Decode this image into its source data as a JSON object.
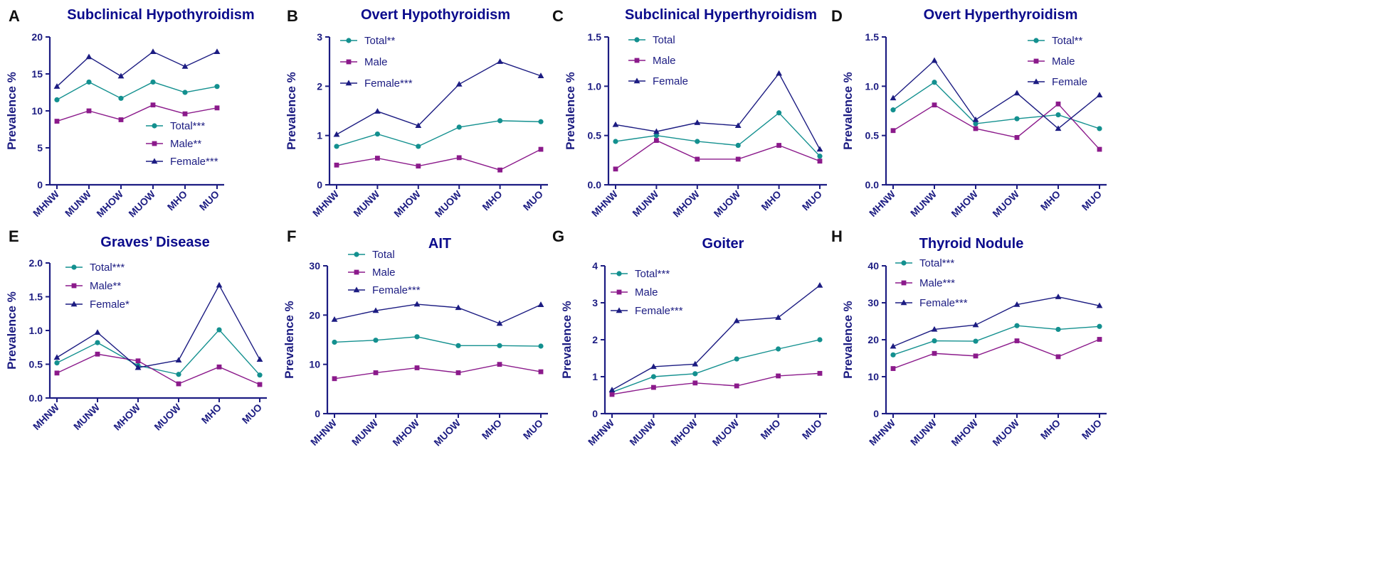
{
  "colors": {
    "total": "#13908F",
    "male": "#8B1A8B",
    "female": "#1C1C82",
    "axis": "#1C1C82",
    "text": "#1C1C82",
    "title": "#0B0B8C"
  },
  "chart_data": [
    {
      "panel_letter": "A",
      "type": "line",
      "title": "Subclinical Hypothyroidism",
      "ylabel": "Prevalence %",
      "categories": [
        "MHNW",
        "MUNW",
        "MHOW",
        "MUOW",
        "MHO",
        "MUO"
      ],
      "ylim": [
        0,
        20
      ],
      "yticks": [
        "0",
        "5",
        "10",
        "15",
        "20"
      ],
      "legend_position": "bottom-right",
      "series": [
        {
          "name": "Total***",
          "key": "total",
          "values": [
            11.5,
            13.9,
            11.7,
            13.9,
            12.5,
            13.3
          ]
        },
        {
          "name": "Male**",
          "key": "male",
          "values": [
            8.6,
            10.0,
            8.8,
            10.8,
            9.6,
            10.4
          ]
        },
        {
          "name": "Female***",
          "key": "female",
          "values": [
            13.3,
            17.3,
            14.7,
            18.0,
            16.0,
            18.0
          ]
        }
      ]
    },
    {
      "panel_letter": "B",
      "type": "line",
      "title": "Overt Hypothyroidism",
      "ylabel": "Prevalence %",
      "categories": [
        "MHNW",
        "MUNW",
        "MHOW",
        "MUOW",
        "MHO",
        "MUO"
      ],
      "ylim": [
        0,
        3
      ],
      "yticks": [
        "0",
        "1",
        "2",
        "3"
      ],
      "legend_position": "top-left",
      "series": [
        {
          "name": "Total**",
          "key": "total",
          "values": [
            0.78,
            1.03,
            0.78,
            1.17,
            1.3,
            1.28
          ]
        },
        {
          "name": "Male",
          "key": "male",
          "values": [
            0.4,
            0.54,
            0.38,
            0.55,
            0.3,
            0.72
          ]
        },
        {
          "name": "Female***",
          "key": "female",
          "values": [
            1.02,
            1.49,
            1.2,
            2.04,
            2.5,
            2.21
          ]
        }
      ]
    },
    {
      "panel_letter": "C",
      "type": "line",
      "title": "Subclinical Hyperthyroidism",
      "ylabel": "Prevalence %",
      "categories": [
        "MHNW",
        "MUNW",
        "MHOW",
        "MUOW",
        "MHO",
        "MUO"
      ],
      "ylim": [
        0,
        1.5
      ],
      "yticks": [
        "0.0",
        "0.5",
        "1.0",
        "1.5"
      ],
      "legend_position": "top-left",
      "series": [
        {
          "name": "Total",
          "key": "total",
          "values": [
            0.44,
            0.5,
            0.44,
            0.4,
            0.73,
            0.29
          ]
        },
        {
          "name": "Male",
          "key": "male",
          "values": [
            0.16,
            0.45,
            0.26,
            0.26,
            0.4,
            0.24
          ]
        },
        {
          "name": "Female",
          "key": "female",
          "values": [
            0.61,
            0.54,
            0.63,
            0.6,
            1.13,
            0.36
          ]
        }
      ]
    },
    {
      "panel_letter": "D",
      "type": "line",
      "title": "Overt Hyperthyroidism",
      "ylabel": "Prevalence %",
      "categories": [
        "MHNW",
        "MUNW",
        "MHOW",
        "MUOW",
        "MHO",
        "MUO"
      ],
      "ylim": [
        0,
        1.5
      ],
      "yticks": [
        "0.0",
        "0.5",
        "1.0",
        "1.5"
      ],
      "legend_position": "top-right",
      "series": [
        {
          "name": "Total**",
          "key": "total",
          "values": [
            0.76,
            1.04,
            0.62,
            0.67,
            0.71,
            0.57
          ]
        },
        {
          "name": "Male",
          "key": "male",
          "values": [
            0.55,
            0.81,
            0.57,
            0.48,
            0.82,
            0.36
          ]
        },
        {
          "name": "Female",
          "key": "female",
          "values": [
            0.88,
            1.26,
            0.66,
            0.93,
            0.57,
            0.91
          ]
        }
      ]
    },
    {
      "panel_letter": "E",
      "type": "line",
      "title": "Graves’ Disease",
      "ylabel": "Prevalence %",
      "categories": [
        "MHNW",
        "MUNW",
        "MHOW",
        "MUOW",
        "MHO",
        "MUO"
      ],
      "ylim": [
        0,
        2.0
      ],
      "yticks": [
        "0.0",
        "0.5",
        "1.0",
        "1.5",
        "2.0"
      ],
      "legend_position": "top-left",
      "series": [
        {
          "name": "Total***",
          "key": "total",
          "values": [
            0.52,
            0.82,
            0.48,
            0.35,
            1.01,
            0.34
          ]
        },
        {
          "name": "Male**",
          "key": "male",
          "values": [
            0.37,
            0.65,
            0.55,
            0.21,
            0.46,
            0.2
          ]
        },
        {
          "name": "Female*",
          "key": "female",
          "values": [
            0.6,
            0.97,
            0.45,
            0.56,
            1.67,
            0.57
          ]
        }
      ]
    },
    {
      "panel_letter": "F",
      "type": "line",
      "title": "AIT",
      "ylabel": "Prevalence %",
      "categories": [
        "MHNW",
        "MUNW",
        "MHOW",
        "MUOW",
        "MHO",
        "MUO"
      ],
      "ylim": [
        0,
        30
      ],
      "yticks": [
        "0",
        "10",
        "20",
        "30"
      ],
      "legend_position": "top-left",
      "series": [
        {
          "name": "Total",
          "key": "total",
          "values": [
            14.5,
            14.9,
            15.6,
            13.8,
            13.8,
            13.7
          ]
        },
        {
          "name": "Male",
          "key": "male",
          "values": [
            7.1,
            8.3,
            9.3,
            8.3,
            10.0,
            8.5
          ]
        },
        {
          "name": "Female***",
          "key": "female",
          "values": [
            19.1,
            20.9,
            22.2,
            21.5,
            18.3,
            22.1
          ]
        }
      ]
    },
    {
      "panel_letter": "G",
      "type": "line",
      "title": "Goiter",
      "ylabel": "Prevalence %",
      "categories": [
        "MHNW",
        "MUNW",
        "MHOW",
        "MUOW",
        "MHO",
        "MUO"
      ],
      "ylim": [
        0,
        4
      ],
      "yticks": [
        "0",
        "1",
        "2",
        "3",
        "4"
      ],
      "legend_position": "top-left",
      "series": [
        {
          "name": "Total***",
          "key": "total",
          "values": [
            0.58,
            1.0,
            1.08,
            1.48,
            1.75,
            2.0
          ]
        },
        {
          "name": "Male",
          "key": "male",
          "values": [
            0.52,
            0.71,
            0.83,
            0.75,
            1.02,
            1.09
          ]
        },
        {
          "name": "Female***",
          "key": "female",
          "values": [
            0.64,
            1.27,
            1.34,
            2.51,
            2.6,
            3.47
          ]
        }
      ]
    },
    {
      "panel_letter": "H",
      "type": "line",
      "title": "Thyroid Nodule",
      "ylabel": "Prevalence %",
      "categories": [
        "MHNW",
        "MUNW",
        "MHOW",
        "MUOW",
        "MHO",
        "MUO"
      ],
      "ylim": [
        0,
        40
      ],
      "yticks": [
        "0",
        "10",
        "20",
        "30",
        "40"
      ],
      "legend_position": "top-left",
      "series": [
        {
          "name": "Total***",
          "key": "total",
          "values": [
            15.9,
            19.7,
            19.6,
            23.8,
            22.8,
            23.6
          ]
        },
        {
          "name": "Male***",
          "key": "male",
          "values": [
            12.2,
            16.3,
            15.6,
            19.7,
            15.4,
            20.1
          ]
        },
        {
          "name": "Female***",
          "key": "female",
          "values": [
            18.2,
            22.8,
            24.0,
            29.5,
            31.6,
            29.2
          ]
        }
      ]
    }
  ]
}
